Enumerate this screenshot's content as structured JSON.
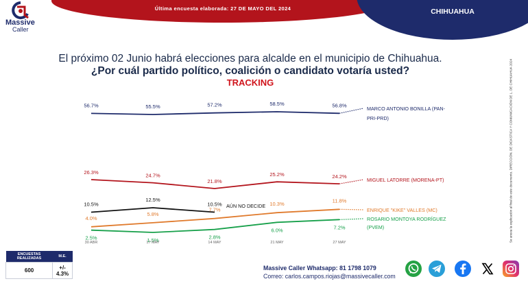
{
  "header": {
    "banner_text": "Última encuesta elaborada:     27 DE MAYO DEL 2024",
    "state": "CHIHUAHUA",
    "logo_name": "Massive",
    "logo_sub": "Caller"
  },
  "question": {
    "line1": "El próximo 02 Junio habrá elecciones para alcalde en el municipio de Chihuahua.",
    "line2": "¿Por cuál partido político, coalición o candidato votaría usted?",
    "tracking_label": "TRACKING"
  },
  "legal_text": "Se anexa la explicación al final de este documento. DIRECCIÓN. DE DIDÁSTICA Y COMUNICACIÓN DE L. DE CHIHUAHUA 2024",
  "chart_data": {
    "type": "line",
    "categories": [
      "30 ABR",
      "17 MAY",
      "14 MAY",
      "21 MAY",
      "27 MAY"
    ],
    "series": [
      {
        "name": "MARCO ANTONIO BONILLA (PAN-PRI-PRD)",
        "color": "#1e2b6b",
        "values": [
          56.7,
          55.5,
          57.2,
          58.5,
          56.8
        ],
        "labels": [
          "56.7%",
          "55.5%",
          "57.2%",
          "58.5%",
          "56.8%"
        ]
      },
      {
        "name": "MIGUEL LATORRE (MORENA-PT)",
        "color": "#b3141c",
        "values": [
          26.3,
          24.7,
          21.8,
          25.2,
          24.2
        ],
        "labels": [
          "26.3%",
          "24.7%",
          "21.8%",
          "25.2%",
          "24.2%"
        ]
      },
      {
        "name": "AÚN NO DECIDE",
        "color": "#111111",
        "values": [
          10.5,
          12.5,
          10.5,
          null,
          null
        ],
        "labels": [
          "10.5%",
          "12.5%",
          "10.5%",
          "",
          ""
        ]
      },
      {
        "name": "ENRIQUE \"KIKE\" VALLES (MC)",
        "color": "#e07a2c",
        "values": [
          4.0,
          5.8,
          7.7,
          10.3,
          11.8
        ],
        "labels": [
          "4.0%",
          "5.8%",
          "7.7%",
          "10.3%",
          "11.8%"
        ]
      },
      {
        "name": "ROSARIO MONTOYA RODRÍGUEZ (PVEM)",
        "color": "#17a04a",
        "values": [
          2.5,
          1.5,
          2.8,
          6.0,
          7.2
        ],
        "labels": [
          "2.5%",
          "1.5%",
          "2.8%",
          "6.0%",
          "7.2%"
        ]
      }
    ],
    "legend": [
      "MARCO ANTONIO BONILLA (PAN-",
      "PRI-PRD)",
      "MIGUEL LATORRE (MORENA-PT)",
      "AÚN NO DECIDE",
      "ENRIQUE \"KIKE\" VALLES (MC)",
      "ROSARIO MONTOYA RODRÍGUEZ",
      "(PVEM)"
    ],
    "xlabel": "",
    "ylabel": ""
  },
  "stats": {
    "col1": "ENCUESTAS REALIZADAS",
    "col2": "M.E.",
    "val1": "600",
    "val2": "+/- 4.3%"
  },
  "contact": {
    "whatsapp": "Massive Caller Whatsapp: 81 1798 1079",
    "email": "Correo: carlos.campos.riojas@massivecaller.com"
  },
  "social": [
    "whatsapp-icon",
    "telegram-icon",
    "facebook-icon",
    "x-icon",
    "instagram-icon"
  ],
  "colors": {
    "navy": "#1e2b6b",
    "red": "#b3141c",
    "tracking": "#d0141c"
  }
}
